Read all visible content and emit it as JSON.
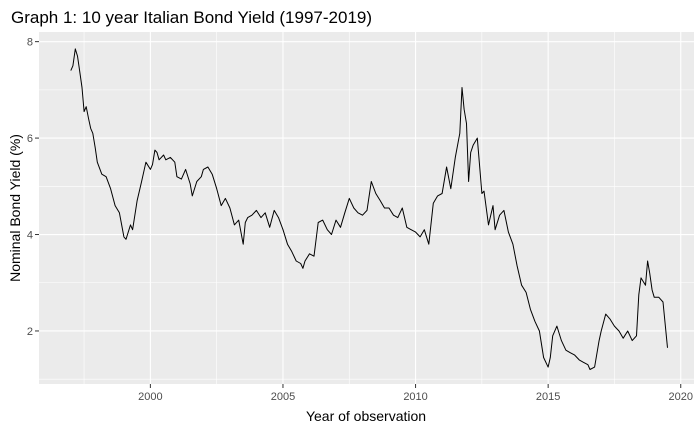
{
  "chart_data": {
    "type": "line",
    "title": "Graph 1: 10 year Italian Bond Yield (1997-2019)",
    "xlabel": "Year of observation",
    "ylabel": "Nominal Bond Yield (%)",
    "xlim": [
      1995.8,
      2020.5
    ],
    "ylim": [
      0.9,
      8.2
    ],
    "x_ticks": [
      2000,
      2005,
      2010,
      2015,
      2020
    ],
    "y_ticks": [
      2,
      4,
      6,
      8
    ],
    "grid": true,
    "panel_background": "#ebebeb",
    "grid_color": "#ffffff",
    "line_color": "#000000",
    "series": [
      {
        "x": [
          1997.0,
          1997.08,
          1997.17,
          1997.25,
          1997.33,
          1997.42,
          1997.5,
          1997.58,
          1997.67,
          1997.75,
          1997.83,
          1997.92,
          1998.0,
          1998.17,
          1998.33,
          1998.5,
          1998.67,
          1998.83,
          1999.0,
          1999.08,
          1999.25,
          1999.33,
          1999.5,
          1999.67,
          1999.83,
          2000.0,
          2000.08,
          2000.17,
          2000.25,
          2000.33,
          2000.5,
          2000.58,
          2000.75,
          2000.92,
          2001.0,
          2001.17,
          2001.33,
          2001.5,
          2001.58,
          2001.75,
          2001.92,
          2002.0,
          2002.17,
          2002.33,
          2002.5,
          2002.67,
          2002.83,
          2003.0,
          2003.17,
          2003.33,
          2003.5,
          2003.58,
          2003.67,
          2003.83,
          2004.0,
          2004.17,
          2004.33,
          2004.5,
          2004.67,
          2004.83,
          2005.0,
          2005.17,
          2005.33,
          2005.5,
          2005.67,
          2005.75,
          2005.83,
          2006.0,
          2006.17,
          2006.33,
          2006.5,
          2006.67,
          2006.83,
          2007.0,
          2007.17,
          2007.33,
          2007.5,
          2007.67,
          2007.83,
          2008.0,
          2008.17,
          2008.33,
          2008.5,
          2008.67,
          2008.83,
          2009.0,
          2009.17,
          2009.33,
          2009.5,
          2009.67,
          2009.83,
          2010.0,
          2010.17,
          2010.33,
          2010.5,
          2010.67,
          2010.83,
          2011.0,
          2011.17,
          2011.33,
          2011.5,
          2011.67,
          2011.75,
          2011.83,
          2011.92,
          2012.0,
          2012.08,
          2012.17,
          2012.33,
          2012.5,
          2012.58,
          2012.75,
          2012.92,
          2013.0,
          2013.17,
          2013.33,
          2013.5,
          2013.67,
          2013.83,
          2014.0,
          2014.17,
          2014.33,
          2014.5,
          2014.67,
          2014.83,
          2015.0,
          2015.08,
          2015.17,
          2015.33,
          2015.5,
          2015.67,
          2015.83,
          2016.0,
          2016.17,
          2016.33,
          2016.5,
          2016.58,
          2016.75,
          2016.92,
          2017.0,
          2017.17,
          2017.33,
          2017.5,
          2017.67,
          2017.83,
          2018.0,
          2018.17,
          2018.33,
          2018.42,
          2018.5,
          2018.67,
          2018.75,
          2018.83,
          2018.92,
          2019.0,
          2019.17,
          2019.33,
          2019.5
        ],
        "y": [
          7.4,
          7.5,
          7.85,
          7.7,
          7.4,
          7.05,
          6.55,
          6.65,
          6.4,
          6.2,
          6.1,
          5.8,
          5.5,
          5.25,
          5.2,
          4.95,
          4.6,
          4.45,
          3.95,
          3.9,
          4.2,
          4.1,
          4.7,
          5.1,
          5.5,
          5.35,
          5.45,
          5.75,
          5.7,
          5.55,
          5.65,
          5.55,
          5.6,
          5.5,
          5.2,
          5.15,
          5.35,
          5.05,
          4.8,
          5.1,
          5.2,
          5.35,
          5.4,
          5.25,
          4.95,
          4.6,
          4.75,
          4.55,
          4.2,
          4.3,
          3.8,
          4.25,
          4.35,
          4.4,
          4.5,
          4.35,
          4.45,
          4.15,
          4.5,
          4.35,
          4.1,
          3.8,
          3.65,
          3.45,
          3.4,
          3.3,
          3.45,
          3.6,
          3.55,
          4.25,
          4.3,
          4.1,
          4.0,
          4.3,
          4.15,
          4.45,
          4.75,
          4.55,
          4.45,
          4.4,
          4.5,
          5.1,
          4.85,
          4.7,
          4.55,
          4.55,
          4.4,
          4.35,
          4.55,
          4.15,
          4.1,
          4.05,
          3.95,
          4.1,
          3.8,
          4.65,
          4.8,
          4.85,
          5.4,
          4.95,
          5.6,
          6.1,
          7.05,
          6.6,
          6.3,
          5.1,
          5.7,
          5.85,
          6.0,
          4.85,
          4.9,
          4.2,
          4.6,
          4.1,
          4.4,
          4.5,
          4.05,
          3.8,
          3.35,
          2.95,
          2.8,
          2.45,
          2.2,
          2.0,
          1.45,
          1.25,
          1.45,
          1.9,
          2.1,
          1.8,
          1.6,
          1.55,
          1.5,
          1.4,
          1.35,
          1.3,
          1.2,
          1.25,
          1.8,
          2.0,
          2.35,
          2.25,
          2.1,
          2.0,
          1.85,
          2.0,
          1.8,
          1.9,
          2.75,
          3.1,
          2.95,
          3.45,
          3.2,
          2.85,
          2.7,
          2.7,
          2.6,
          1.65
        ]
      }
    ]
  }
}
